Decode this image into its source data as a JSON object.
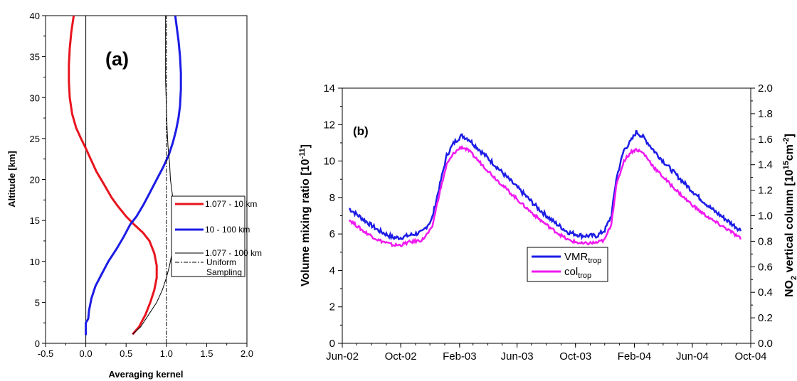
{
  "chart_data": [
    {
      "type": "line",
      "panel_label": "(a)",
      "xlabel": "Averaging kernel",
      "ylabel": "Altitude [km]",
      "xlim": [
        -0.5,
        2.0
      ],
      "ylim": [
        0,
        40
      ],
      "x_ticks": [
        "-0.5",
        "0.0",
        "0.5",
        "1.0",
        "1.5",
        "2.0"
      ],
      "y_ticks": [
        "0",
        "5",
        "10",
        "15",
        "20",
        "25",
        "30",
        "35",
        "40"
      ],
      "grid": false,
      "legend_position": "bottom-right",
      "series": [
        {
          "name": "1.077 - 10 km",
          "color": "#e8141e",
          "points": [
            [
              0.58,
              1.1
            ],
            [
              0.66,
              2.0
            ],
            [
              0.74,
              3.5
            ],
            [
              0.8,
              5.0
            ],
            [
              0.85,
              6.5
            ],
            [
              0.88,
              8.0
            ],
            [
              0.88,
              9.5
            ],
            [
              0.85,
              11.0
            ],
            [
              0.79,
              12.5
            ],
            [
              0.71,
              13.5
            ],
            [
              0.6,
              14.5
            ],
            [
              0.5,
              15.5
            ],
            [
              0.4,
              16.7
            ],
            [
              0.32,
              17.8
            ],
            [
              0.22,
              19.5
            ],
            [
              0.13,
              21.0
            ],
            [
              0.06,
              22.5
            ],
            [
              0.0,
              23.8
            ],
            [
              -0.06,
              25.0
            ],
            [
              -0.12,
              26.3
            ],
            [
              -0.17,
              28.0
            ],
            [
              -0.2,
              30.0
            ],
            [
              -0.21,
              32.0
            ],
            [
              -0.21,
              34.0
            ],
            [
              -0.2,
              36.0
            ],
            [
              -0.18,
              38.0
            ],
            [
              -0.15,
              40.0
            ]
          ]
        },
        {
          "name": "10 - 100 km",
          "color": "#1c1ce6",
          "points": [
            [
              0.0,
              1.0
            ],
            [
              0.0,
              2.5
            ],
            [
              0.03,
              3.0
            ],
            [
              0.04,
              4.0
            ],
            [
              0.07,
              5.5
            ],
            [
              0.12,
              7.0
            ],
            [
              0.2,
              8.5
            ],
            [
              0.28,
              10.0
            ],
            [
              0.38,
              11.5
            ],
            [
              0.47,
              13.0
            ],
            [
              0.55,
              14.5
            ],
            [
              0.63,
              15.5
            ],
            [
              0.72,
              17.0
            ],
            [
              0.8,
              18.5
            ],
            [
              0.88,
              20.0
            ],
            [
              0.96,
              21.5
            ],
            [
              1.03,
              23.0
            ],
            [
              1.08,
              24.5
            ],
            [
              1.12,
              26.0
            ],
            [
              1.15,
              27.5
            ],
            [
              1.17,
              29.0
            ],
            [
              1.18,
              31.0
            ],
            [
              1.18,
              33.0
            ],
            [
              1.17,
              35.0
            ],
            [
              1.15,
              37.0
            ],
            [
              1.13,
              38.5
            ],
            [
              1.11,
              40.0
            ]
          ]
        },
        {
          "name": "1.077 - 100 km",
          "color": "#000000",
          "points": [
            [
              0.58,
              1.1
            ],
            [
              0.68,
              2.0
            ],
            [
              0.78,
              3.5
            ],
            [
              0.88,
              5.0
            ],
            [
              0.95,
              6.5
            ],
            [
              1.0,
              8.0
            ],
            [
              1.04,
              9.5
            ],
            [
              1.07,
              11.0
            ],
            [
              1.09,
              12.5
            ],
            [
              1.1,
              14.0
            ],
            [
              1.1,
              15.5
            ],
            [
              1.09,
              17.0
            ],
            [
              1.07,
              18.5
            ],
            [
              1.05,
              20.0
            ],
            [
              1.04,
              22.0
            ],
            [
              1.02,
              24.0
            ],
            [
              1.01,
              26.0
            ],
            [
              1.0,
              29.0
            ],
            [
              0.99,
              32.0
            ],
            [
              0.99,
              36.0
            ],
            [
              0.99,
              40.0
            ]
          ]
        },
        {
          "name": "Uniform Sampling",
          "color": "#000000",
          "dashed": true,
          "points": [
            [
              1.0,
              0.0
            ],
            [
              1.0,
              40.0
            ]
          ]
        }
      ],
      "legend": {
        "entries": [
          "1.077 - 10 km",
          "10 - 100 km",
          "1.077 - 100 km",
          "Uniform Sampling"
        ]
      }
    },
    {
      "type": "line",
      "panel_label": "(b)",
      "xlabel": "",
      "ylabel": "Volume mixing ratio [10-11]",
      "ylabel_main": "Volume mixing ratio [10",
      "ylabel_sup": "-11",
      "ylabel_tail": "]",
      "y2label_main": "NO",
      "y2label_sub": "2",
      "y2label_mid": " vertical column [10",
      "y2label_sup": "15",
      "y2label_mid2": "cm",
      "y2label_sup2": "-2",
      "y2label_tail": "]",
      "x_ticks": [
        "Jun-02",
        "Oct-02",
        "Feb-03",
        "Jun-03",
        "Oct-03",
        "Feb-04",
        "Jun-04",
        "Oct-04"
      ],
      "x_range": [
        "2002-06-01",
        "2004-10-01"
      ],
      "ylim": [
        0,
        14
      ],
      "y_ticks": [
        "0",
        "2",
        "4",
        "6",
        "8",
        "10",
        "12",
        "14"
      ],
      "y2lim": [
        0.0,
        2.0
      ],
      "y2_ticks": [
        "0.0",
        "0.2",
        "0.4",
        "0.6",
        "0.8",
        "1.0",
        "1.2",
        "1.4",
        "1.6",
        "1.8",
        "2.0"
      ],
      "grid": false,
      "legend_position": "bottom-center",
      "series": [
        {
          "name": "VMR",
          "name_sub": "trop",
          "color": "#1c1ce6",
          "axis": "left",
          "x": [
            "2002-06-15",
            "2002-07-15",
            "2002-08-15",
            "2002-09-15",
            "2002-10-01",
            "2002-10-15",
            "2002-11-15",
            "2002-12-05",
            "2002-12-20",
            "2003-01-05",
            "2003-01-20",
            "2003-02-05",
            "2003-02-20",
            "2003-03-15",
            "2003-04-15",
            "2003-05-15",
            "2003-06-15",
            "2003-07-15",
            "2003-08-15",
            "2003-09-15",
            "2003-10-15",
            "2003-11-15",
            "2003-12-01",
            "2003-12-15",
            "2003-12-25",
            "2004-01-10",
            "2004-01-25",
            "2004-02-05",
            "2004-02-20",
            "2004-03-15",
            "2004-04-15",
            "2004-05-15",
            "2004-06-15",
            "2004-07-15",
            "2004-08-15",
            "2004-09-10"
          ],
          "values": [
            7.4,
            6.8,
            6.2,
            5.8,
            5.8,
            5.9,
            6.1,
            6.8,
            8.5,
            10.3,
            11.0,
            11.4,
            11.2,
            10.6,
            9.8,
            9.0,
            8.2,
            7.4,
            6.7,
            6.1,
            5.9,
            5.9,
            6.2,
            7.0,
            9.0,
            10.6,
            11.1,
            11.6,
            11.3,
            10.5,
            9.6,
            8.8,
            8.0,
            7.3,
            6.7,
            6.2
          ]
        },
        {
          "name": "col",
          "name_sub": "trop",
          "color": "#f019f0",
          "axis": "right",
          "x": [
            "2002-06-15",
            "2002-07-15",
            "2002-08-15",
            "2002-09-15",
            "2002-10-01",
            "2002-10-15",
            "2002-11-15",
            "2002-12-05",
            "2002-12-20",
            "2003-01-05",
            "2003-01-20",
            "2003-02-05",
            "2003-02-20",
            "2003-03-15",
            "2003-04-15",
            "2003-05-15",
            "2003-06-15",
            "2003-07-15",
            "2003-08-15",
            "2003-09-15",
            "2003-10-15",
            "2003-11-15",
            "2003-12-01",
            "2003-12-15",
            "2003-12-25",
            "2004-01-10",
            "2004-01-25",
            "2004-02-05",
            "2004-02-20",
            "2004-03-15",
            "2004-04-15",
            "2004-05-15",
            "2004-06-15",
            "2004-07-15",
            "2004-08-15",
            "2004-09-10"
          ],
          "values": [
            0.97,
            0.88,
            0.81,
            0.77,
            0.77,
            0.79,
            0.81,
            0.9,
            1.16,
            1.4,
            1.49,
            1.54,
            1.51,
            1.42,
            1.3,
            1.19,
            1.08,
            0.98,
            0.89,
            0.81,
            0.78,
            0.79,
            0.81,
            0.94,
            1.23,
            1.43,
            1.5,
            1.52,
            1.49,
            1.37,
            1.25,
            1.14,
            1.04,
            0.96,
            0.89,
            0.82
          ]
        }
      ]
    }
  ]
}
